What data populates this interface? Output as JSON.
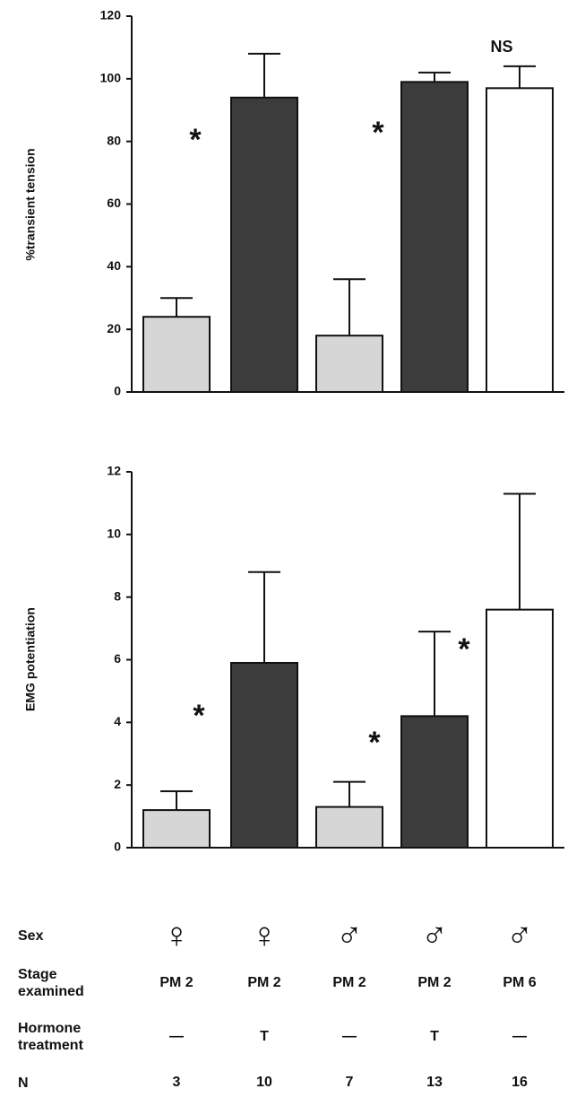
{
  "chart_data": [
    {
      "type": "bar",
      "y_label": "%transient tension",
      "values": [
        24,
        94,
        18,
        99,
        97
      ],
      "errors": [
        6,
        14,
        18,
        3,
        7
      ],
      "colors": [
        "#d6d6d6",
        "#3c3c3c",
        "#d6d6d6",
        "#3c3c3c",
        "#ffffff"
      ],
      "ylim": [
        0,
        120
      ],
      "yticks": [
        0,
        20,
        40,
        60,
        80,
        100,
        120
      ],
      "annotations": [
        "*",
        "*",
        "NS"
      ]
    },
    {
      "type": "bar",
      "y_label": "EMG potentiation",
      "values": [
        1.2,
        5.9,
        1.3,
        4.2,
        7.6
      ],
      "errors": [
        0.6,
        2.9,
        0.8,
        2.7,
        3.7
      ],
      "colors": [
        "#d6d6d6",
        "#3c3c3c",
        "#d6d6d6",
        "#3c3c3c",
        "#ffffff"
      ],
      "ylim": [
        0,
        12
      ],
      "yticks": [
        0,
        2,
        4,
        6,
        8,
        10,
        12
      ],
      "annotations": [
        "*",
        "*",
        "*"
      ]
    }
  ],
  "table": {
    "row_labels": [
      "Sex",
      "Stage examined",
      "Hormone treatment",
      "N"
    ],
    "rows": [
      [
        "♀",
        "♀",
        "♂",
        "♂",
        "♂"
      ],
      [
        "PM 2",
        "PM 2",
        "PM 2",
        "PM 2",
        "PM 6"
      ],
      [
        "—",
        "T",
        "—",
        "T",
        "—"
      ],
      [
        "3",
        "10",
        "7",
        "13",
        "16"
      ]
    ]
  }
}
